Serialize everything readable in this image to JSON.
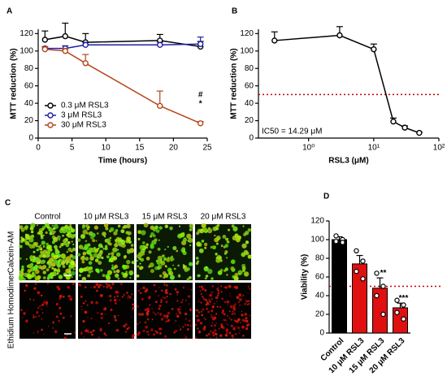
{
  "chart_data": [
    {
      "type": "line",
      "panel_label": "A",
      "xlabel": "Time (hours)",
      "ylabel": "MTT reduction (%)",
      "x": [
        1,
        4,
        7,
        18,
        24
      ],
      "xlim": [
        0,
        25
      ],
      "xticks": [
        0,
        5,
        10,
        15,
        20,
        25
      ],
      "ylim": [
        0,
        125
      ],
      "yticks": [
        0,
        20,
        40,
        60,
        80,
        100,
        120
      ],
      "legend": "lower left",
      "series": [
        {
          "name": "0.3 μM RSL3",
          "color": "#000000",
          "values": [
            113,
            117,
            110,
            112,
            105
          ],
          "errors": [
            10,
            15,
            10,
            7,
            6
          ]
        },
        {
          "name": "3 μM RSL3",
          "color": "#1f1fa8",
          "values": [
            103,
            103,
            107,
            107,
            108
          ],
          "errors": [
            2,
            3,
            3,
            3,
            8
          ]
        },
        {
          "name": "30 μM RSL3",
          "color": "#b5451b",
          "values": [
            102,
            100,
            86,
            37,
            17
          ],
          "errors": [
            3,
            3,
            10,
            17,
            2
          ]
        }
      ],
      "annotations": [
        "#",
        "*"
      ]
    },
    {
      "type": "line",
      "panel_label": "B",
      "xlabel": "RSL3 (μM)",
      "ylabel": "MTT reduction (%)",
      "x": [
        0.3,
        3,
        10,
        20,
        30,
        50
      ],
      "xlog": true,
      "xlim": [
        0.17,
        100
      ],
      "xticks": [
        {
          "value": 1,
          "label": "10⁰"
        },
        {
          "value": 10,
          "label": "10¹"
        },
        {
          "value": 100,
          "label": "10²"
        }
      ],
      "ylim": [
        0,
        125
      ],
      "yticks": [
        0,
        20,
        40,
        60,
        80,
        100,
        120
      ],
      "series": [
        {
          "color": "#000000",
          "values": [
            112,
            118,
            102,
            19,
            12,
            6
          ],
          "errors": [
            10,
            10,
            6,
            4,
            2,
            1
          ]
        }
      ],
      "reference_line": 50,
      "reference_color": "#c00000",
      "annotation": "IC50 = 14.29 μM"
    },
    {
      "type": "bar",
      "panel_label": "D",
      "ylabel": "Viability (%)",
      "categories": [
        "Control",
        "10 μM RSL3",
        "15 μM RSL3",
        "20 μM RSL3"
      ],
      "values": [
        100,
        74,
        48,
        27
      ],
      "errors": [
        3,
        9,
        11,
        5
      ],
      "colors": [
        "#000000",
        "#e01010",
        "#e01010",
        "#e01010"
      ],
      "points": [
        [
          104,
          100,
          98,
          97
        ],
        [
          88,
          77,
          66,
          58
        ],
        [
          64,
          50,
          40,
          20
        ],
        [
          35,
          30,
          22,
          15
        ]
      ],
      "significance": [
        null,
        null,
        "**",
        "***"
      ],
      "ylim": [
        0,
        120
      ],
      "yticks": [
        0,
        20,
        40,
        60,
        80,
        100,
        120
      ],
      "reference_line": 50,
      "reference_color": "#c00000"
    }
  ],
  "image_panel": {
    "label": "C",
    "columns": [
      "Control",
      "10 μM RSL3",
      "15 μM RSL3",
      "20 μM RSL3"
    ],
    "rows": [
      "Calcein-AM",
      "Ethidium Homodimer"
    ]
  }
}
